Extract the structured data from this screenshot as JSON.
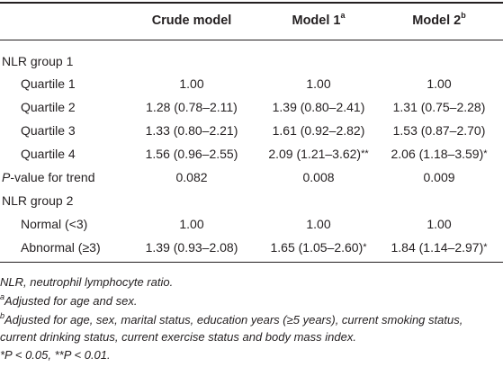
{
  "table": {
    "headers": [
      "",
      "Crude model",
      "Model 1",
      "Model 2"
    ],
    "header_sups": [
      "",
      "",
      "a",
      "b"
    ],
    "rows": [
      {
        "label": "NLR group 1",
        "indent": false,
        "cells": [
          "",
          "",
          ""
        ]
      },
      {
        "label": "Quartile 1",
        "indent": true,
        "cells": [
          "1.00",
          "1.00",
          "1.00"
        ]
      },
      {
        "label": "Quartile 2",
        "indent": true,
        "cells": [
          "1.28 (0.78–2.11)",
          "1.39 (0.80–2.41)",
          "1.31 (0.75–2.28)"
        ]
      },
      {
        "label": "Quartile 3",
        "indent": true,
        "cells": [
          "1.33 (0.80–2.21)",
          "1.61 (0.92–2.82)",
          "1.53 (0.87–2.70)"
        ]
      },
      {
        "label": "Quartile 4",
        "indent": true,
        "cells": [
          "1.56 (0.96–2.55)",
          "2.09 (1.21–3.62)**",
          "2.06 (1.18–3.59)*"
        ]
      },
      {
        "label_italic": "P",
        "label": "-value for trend",
        "indent": false,
        "cells": [
          "0.082",
          "0.008",
          "0.009"
        ]
      },
      {
        "label": "NLR group 2",
        "indent": false,
        "cells": [
          "",
          "",
          ""
        ]
      },
      {
        "label": "Normal (<3)",
        "indent": true,
        "cells": [
          "1.00",
          "1.00",
          "1.00"
        ]
      },
      {
        "label": "Abnormal (≥3)",
        "indent": true,
        "cells": [
          "1.39 (0.93–2.08)",
          "1.65 (1.05–2.60)*",
          "1.84 (1.14–2.97)*"
        ]
      }
    ]
  },
  "footnotes": [
    {
      "sup": "",
      "text": "NLR, neutrophil lymphocyte ratio."
    },
    {
      "sup": "a",
      "text": "Adjusted for age and sex."
    },
    {
      "sup": "b",
      "text": "Adjusted for age, sex, marital status, education years (≥5 years), current smoking status,"
    },
    {
      "sup": "",
      "text": "current drinking status, current exercise status and body mass index."
    },
    {
      "sup": "",
      "text": "*P < 0.05, **P < 0.01."
    }
  ]
}
